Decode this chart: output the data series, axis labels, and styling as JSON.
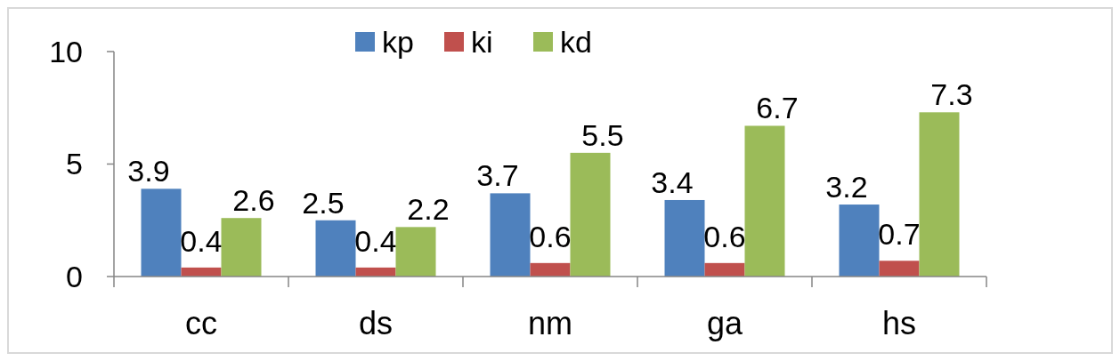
{
  "chart_data": {
    "type": "bar",
    "categories": [
      "cc",
      "ds",
      "nm",
      "ga",
      "hs"
    ],
    "series": [
      {
        "name": "kp",
        "color": "#4f81bd",
        "values": [
          3.9,
          2.5,
          3.7,
          3.4,
          3.2
        ]
      },
      {
        "name": "ki",
        "color": "#c0504d",
        "values": [
          0.4,
          0.4,
          0.6,
          0.6,
          0.7
        ]
      },
      {
        "name": "kd",
        "color": "#9bbb59",
        "values": [
          2.6,
          2.2,
          5.5,
          6.7,
          7.3
        ]
      }
    ],
    "ylim": [
      0,
      10
    ],
    "yticks": [
      0,
      5,
      10
    ],
    "grid": false,
    "legend": "top",
    "data_labels": true
  }
}
